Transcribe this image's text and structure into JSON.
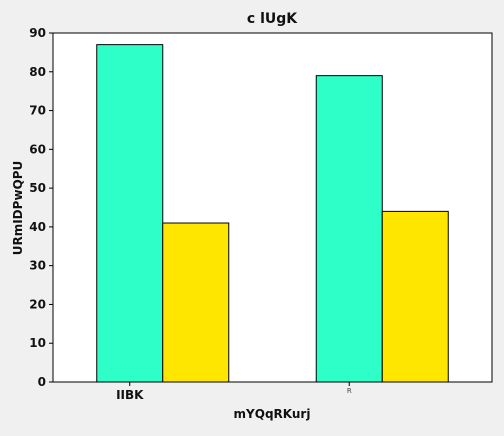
{
  "chart_data": {
    "type": "bar",
    "title": "c lUgK",
    "xlabel": "mYQqRKurj",
    "ylabel": "URmIDPwQPU",
    "categories": [
      "IIBK",
      "R"
    ],
    "series": [
      {
        "values": [
          87,
          79
        ],
        "color": "#2effc8"
      },
      {
        "values": [
          41,
          44
        ],
        "color": "#ffe600"
      }
    ],
    "ylim": [
      0,
      90
    ],
    "yticks": [
      0,
      10,
      20,
      30,
      40,
      50,
      60,
      70,
      80,
      90
    ],
    "grid": false,
    "background": "#f0f0f0",
    "plot_background": "#ffffff"
  }
}
